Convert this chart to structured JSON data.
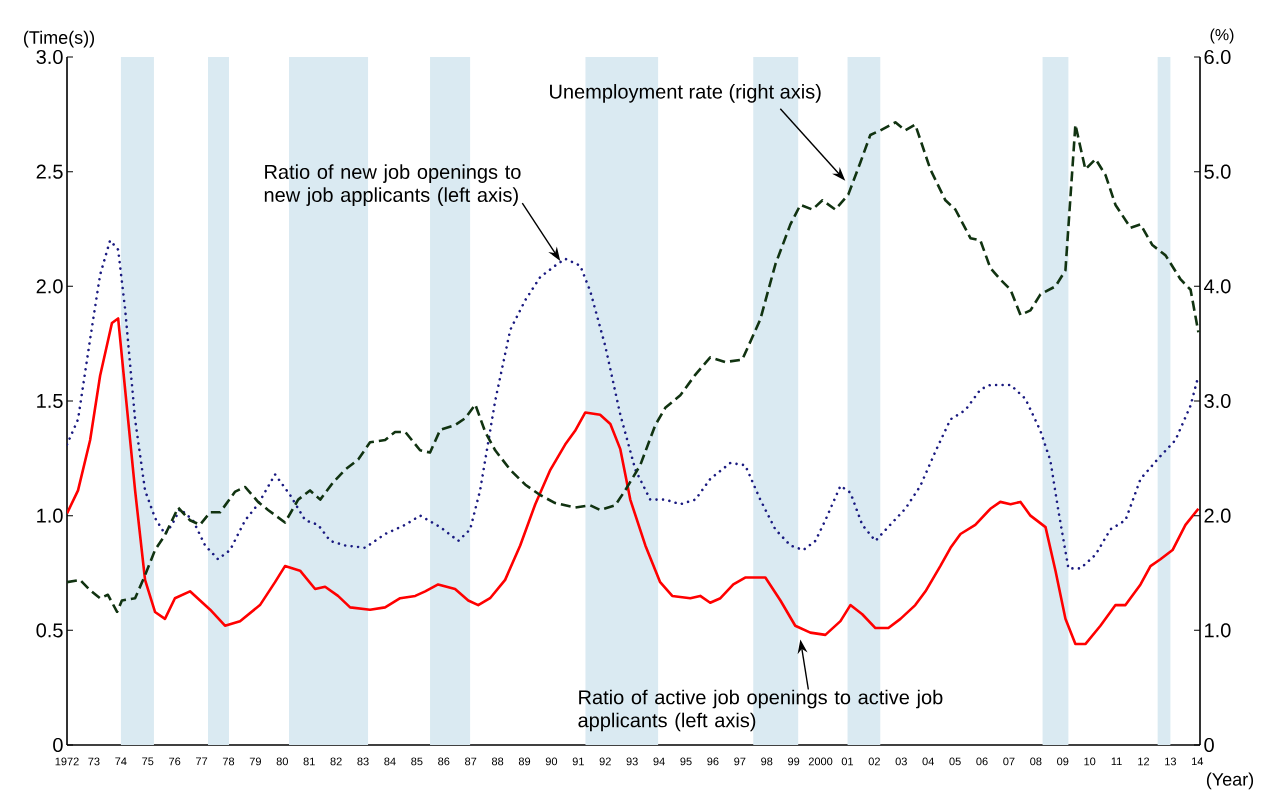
{
  "chart_data": {
    "type": "line",
    "ylabel": "(Time(s))",
    "y2label": "(%)",
    "xlabel": "(Year)",
    "xlim": [
      1972,
      2014.1
    ],
    "xticks": [
      1972,
      {
        "value": 1973,
        "label": "73"
      },
      {
        "value": 1974,
        "label": "74"
      },
      {
        "value": 1975,
        "label": "75"
      },
      {
        "value": 1976,
        "label": "76"
      },
      {
        "value": 1977,
        "label": "77"
      },
      {
        "value": 1978,
        "label": "78"
      },
      {
        "value": 1979,
        "label": "79"
      },
      {
        "value": 1980,
        "label": "80"
      },
      {
        "value": 1981,
        "label": "81"
      },
      {
        "value": 1982,
        "label": "82"
      },
      {
        "value": 1983,
        "label": "83"
      },
      {
        "value": 1984,
        "label": "84"
      },
      {
        "value": 1985,
        "label": "85"
      },
      {
        "value": 1986,
        "label": "86"
      },
      {
        "value": 1987,
        "label": "87"
      },
      {
        "value": 1988,
        "label": "88"
      },
      {
        "value": 1989,
        "label": "89"
      },
      {
        "value": 1990,
        "label": "90"
      },
      {
        "value": 1991,
        "label": "91"
      },
      {
        "value": 1992,
        "label": "92"
      },
      {
        "value": 1993,
        "label": "93"
      },
      {
        "value": 1994,
        "label": "94"
      },
      {
        "value": 1995,
        "label": "95"
      },
      {
        "value": 1996,
        "label": "96"
      },
      {
        "value": 1997,
        "label": "97"
      },
      {
        "value": 1998,
        "label": "98"
      },
      {
        "value": 1999,
        "label": "99"
      },
      2000,
      {
        "value": 2001,
        "label": "01"
      },
      {
        "value": 2002,
        "label": "02"
      },
      {
        "value": 2003,
        "label": "03"
      },
      {
        "value": 2004,
        "label": "04"
      },
      {
        "value": 2005,
        "label": "05"
      },
      {
        "value": 2006,
        "label": "06"
      },
      {
        "value": 2007,
        "label": "07"
      },
      {
        "value": 2008,
        "label": "08"
      },
      {
        "value": 2009,
        "label": "09"
      },
      {
        "value": 2010,
        "label": "10"
      },
      {
        "value": 2011,
        "label": "11"
      },
      {
        "value": 2012,
        "label": "12"
      },
      {
        "value": 2013,
        "label": "13"
      },
      {
        "value": 2014,
        "label": "14"
      }
    ],
    "ylim": [
      0,
      3
    ],
    "yticks": [
      0,
      0.5,
      {
        "value": 1,
        "label": "1.0"
      },
      1.5,
      {
        "value": 2,
        "label": "2.0"
      },
      2.5,
      {
        "value": 3,
        "label": "3.0"
      }
    ],
    "y2lim": [
      0,
      6
    ],
    "y2ticks": [
      0,
      {
        "value": 1,
        "label": "1.0"
      },
      {
        "value": 2,
        "label": "2.0"
      },
      {
        "value": 3,
        "label": "3.0"
      },
      {
        "value": 4,
        "label": "4.0"
      },
      {
        "value": 5,
        "label": "5.0"
      },
      {
        "value": 6,
        "label": "6.0"
      }
    ],
    "bands": [
      {
        "axis": "x",
        "from": 1974.0,
        "to": 1975.23,
        "color": "#daeaf2"
      },
      {
        "axis": "x",
        "from": 1977.24,
        "to": 1978.02,
        "color": "#daeaf2"
      },
      {
        "axis": "x",
        "from": 1980.25,
        "to": 1983.19,
        "color": "#daeaf2"
      },
      {
        "axis": "x",
        "from": 1985.49,
        "to": 1986.98,
        "color": "#daeaf2"
      },
      {
        "axis": "x",
        "from": 1991.26,
        "to": 1993.97,
        "color": "#daeaf2"
      },
      {
        "axis": "x",
        "from": 1997.5,
        "to": 1999.17,
        "color": "#daeaf2"
      },
      {
        "axis": "x",
        "from": 2001.0,
        "to": 2002.22,
        "color": "#daeaf2"
      },
      {
        "axis": "x",
        "from": 2008.25,
        "to": 2009.21,
        "color": "#daeaf2"
      },
      {
        "axis": "x",
        "from": 2012.52,
        "to": 2013.0,
        "color": "#daeaf2"
      }
    ],
    "annotations": [
      {
        "text": "Unemployment rate (right axis)",
        "x": 2000.92,
        "y": 2.46
      },
      {
        "text": "Ratio of new job openings to new job applicants (left axis)",
        "x": 1990.33,
        "y": 2.11
      },
      {
        "text": "Ratio of active job openings to active job applicants (left axis)",
        "x": 1999.25,
        "y": 0.46
      }
    ],
    "series": [
      {
        "color": "#ff0000",
        "line_style": "solid",
        "x": [
          1972.0,
          1972.41,
          1972.86,
          1973.23,
          1973.67,
          1973.9,
          1974.16,
          1974.53,
          1974.9,
          1975.27,
          1975.64,
          1976.01,
          1976.57,
          1977.32,
          1977.87,
          1978.43,
          1979.17,
          1979.73,
          1980.1,
          1980.66,
          1981.22,
          1981.59,
          1982.07,
          1982.52,
          1983.26,
          1983.82,
          1984.38,
          1984.94,
          1985.31,
          1985.79,
          1986.42,
          1986.91,
          1987.28,
          1987.72,
          1988.28,
          1988.84,
          1989.4,
          1989.96,
          1990.51,
          1990.88,
          1991.26,
          1991.81,
          1992.19,
          1992.56,
          1992.93,
          1993.49,
          1994.04,
          1994.49,
          1995.16,
          1995.53,
          1995.9,
          1996.28,
          1996.76,
          1997.2,
          1997.95,
          1998.51,
          1999.06,
          1999.62,
          2000.18,
          2000.74,
          2001.11,
          2001.55,
          2002.04,
          2002.52,
          2002.97,
          2003.52,
          2003.9,
          2004.45,
          2004.83,
          2005.2,
          2005.75,
          2006.31,
          2006.68,
          2007.06,
          2007.43,
          2007.8,
          2008.36,
          2008.73,
          2009.1,
          2009.47,
          2009.84,
          2010.4,
          2010.96,
          2011.33,
          2011.89,
          2012.26,
          2012.63,
          2013.08,
          2013.56,
          2014.04
        ],
        "values": [
          1.01,
          1.11,
          1.33,
          1.61,
          1.84,
          1.86,
          1.55,
          1.11,
          0.72,
          0.58,
          0.55,
          0.64,
          0.67,
          0.59,
          0.52,
          0.54,
          0.61,
          0.71,
          0.78,
          0.76,
          0.68,
          0.69,
          0.65,
          0.6,
          0.59,
          0.6,
          0.64,
          0.65,
          0.67,
          0.7,
          0.68,
          0.63,
          0.61,
          0.64,
          0.72,
          0.87,
          1.05,
          1.2,
          1.31,
          1.37,
          1.45,
          1.44,
          1.4,
          1.29,
          1.07,
          0.87,
          0.71,
          0.65,
          0.64,
          0.65,
          0.62,
          0.64,
          0.7,
          0.73,
          0.73,
          0.63,
          0.52,
          0.49,
          0.48,
          0.54,
          0.61,
          0.57,
          0.51,
          0.51,
          0.55,
          0.61,
          0.67,
          0.78,
          0.86,
          0.92,
          0.96,
          1.03,
          1.06,
          1.05,
          1.06,
          1.0,
          0.95,
          0.76,
          0.55,
          0.44,
          0.44,
          0.52,
          0.61,
          0.61,
          0.7,
          0.78,
          0.81,
          0.85,
          0.96,
          1.03
        ]
      },
      {
        "color": "#1a1a80",
        "line_style": "dotted",
        "x": [
          1972.0,
          1972.41,
          1972.86,
          1973.23,
          1973.6,
          1973.9,
          1974.16,
          1974.53,
          1974.9,
          1975.27,
          1975.64,
          1975.9,
          1976.2,
          1976.68,
          1977.13,
          1977.61,
          1978.06,
          1978.62,
          1979.1,
          1979.73,
          1980.29,
          1980.85,
          1981.33,
          1981.78,
          1982.33,
          1983.08,
          1983.82,
          1984.57,
          1985.12,
          1985.87,
          1986.54,
          1986.98,
          1987.35,
          1987.91,
          1988.47,
          1989.03,
          1989.58,
          1990.14,
          1990.51,
          1991.07,
          1991.44,
          1992.0,
          1992.56,
          1993.12,
          1993.67,
          1994.23,
          1994.79,
          1995.35,
          1995.9,
          1996.65,
          1997.2,
          1997.76,
          1998.32,
          1998.88,
          1999.36,
          1999.81,
          2000.18,
          2000.74,
          2001.11,
          2001.55,
          2002.04,
          2002.59,
          2003.15,
          2003.71,
          2004.27,
          2004.83,
          2005.38,
          2005.94,
          2006.31,
          2007.06,
          2007.61,
          2008.17,
          2008.54,
          2008.84,
          2009.21,
          2009.66,
          2010.22,
          2010.77,
          2011.33,
          2011.89,
          2012.63,
          2013.19,
          2013.75,
          2014.04
        ],
        "values": [
          1.31,
          1.42,
          1.77,
          2.05,
          2.2,
          2.16,
          1.9,
          1.42,
          1.11,
          0.99,
          0.92,
          0.96,
          1.03,
          0.98,
          0.87,
          0.81,
          0.85,
          0.98,
          1.05,
          1.18,
          1.09,
          0.98,
          0.96,
          0.89,
          0.87,
          0.86,
          0.92,
          0.96,
          1.0,
          0.95,
          0.89,
          0.94,
          1.11,
          1.5,
          1.81,
          1.94,
          2.04,
          2.09,
          2.12,
          2.09,
          1.98,
          1.74,
          1.44,
          1.2,
          1.07,
          1.07,
          1.05,
          1.07,
          1.16,
          1.23,
          1.22,
          1.07,
          0.94,
          0.87,
          0.85,
          0.89,
          0.98,
          1.13,
          1.1,
          0.96,
          0.89,
          0.96,
          1.03,
          1.13,
          1.28,
          1.42,
          1.46,
          1.55,
          1.57,
          1.57,
          1.51,
          1.37,
          1.24,
          1.02,
          0.77,
          0.77,
          0.83,
          0.94,
          0.98,
          1.16,
          1.26,
          1.33,
          1.48,
          1.61
        ]
      },
      {
        "color": "#113311",
        "line_style": "dashed",
        "axis": "y2",
        "x": [
          1972.0,
          1972.48,
          1972.86,
          1973.23,
          1973.52,
          1973.86,
          1974.04,
          1974.53,
          1974.9,
          1975.27,
          1975.64,
          1976.13,
          1976.57,
          1976.94,
          1977.32,
          1977.69,
          1978.25,
          1978.62,
          1979.1,
          1979.47,
          1980.1,
          1980.59,
          1981.03,
          1981.41,
          1981.89,
          1982.33,
          1982.82,
          1983.26,
          1983.82,
          1984.19,
          1984.57,
          1985.12,
          1985.49,
          1985.87,
          1986.42,
          1986.8,
          1987.17,
          1987.54,
          1987.91,
          1988.47,
          1989.03,
          1989.58,
          1990.14,
          1990.88,
          1991.44,
          1991.81,
          1992.37,
          1992.74,
          1993.3,
          1993.86,
          1994.23,
          1994.79,
          1995.35,
          1995.9,
          1996.46,
          1997.09,
          1997.76,
          1998.32,
          1998.88,
          1999.25,
          1999.7,
          2000.07,
          2000.55,
          2001.03,
          2001.48,
          2001.85,
          2002.22,
          2002.78,
          2003.15,
          2003.52,
          2004.08,
          2004.64,
          2005.01,
          2005.57,
          2005.94,
          2006.31,
          2006.68,
          2007.06,
          2007.43,
          2007.8,
          2008.17,
          2008.73,
          2009.1,
          2009.47,
          2009.84,
          2010.22,
          2010.59,
          2010.96,
          2011.52,
          2011.89,
          2012.33,
          2012.82,
          2013.38,
          2013.75,
          2014.04
        ],
        "values": [
          1.42,
          1.44,
          1.35,
          1.28,
          1.31,
          1.16,
          1.26,
          1.28,
          1.48,
          1.7,
          1.83,
          2.07,
          1.96,
          1.92,
          2.03,
          2.03,
          2.21,
          2.25,
          2.12,
          2.05,
          1.94,
          2.14,
          2.22,
          2.14,
          2.29,
          2.4,
          2.49,
          2.64,
          2.66,
          2.73,
          2.73,
          2.57,
          2.55,
          2.75,
          2.79,
          2.85,
          2.97,
          2.73,
          2.57,
          2.4,
          2.27,
          2.18,
          2.11,
          2.07,
          2.09,
          2.05,
          2.09,
          2.22,
          2.44,
          2.79,
          2.94,
          3.05,
          3.23,
          3.38,
          3.34,
          3.36,
          3.71,
          4.19,
          4.54,
          4.71,
          4.67,
          4.75,
          4.67,
          4.8,
          5.08,
          5.32,
          5.36,
          5.43,
          5.36,
          5.41,
          5.02,
          4.75,
          4.67,
          4.42,
          4.4,
          4.16,
          4.06,
          3.97,
          3.75,
          3.79,
          3.93,
          4.0,
          4.14,
          5.41,
          5.02,
          5.11,
          4.97,
          4.71,
          4.51,
          4.54,
          4.36,
          4.27,
          4.06,
          3.97,
          3.6
        ]
      }
    ]
  }
}
